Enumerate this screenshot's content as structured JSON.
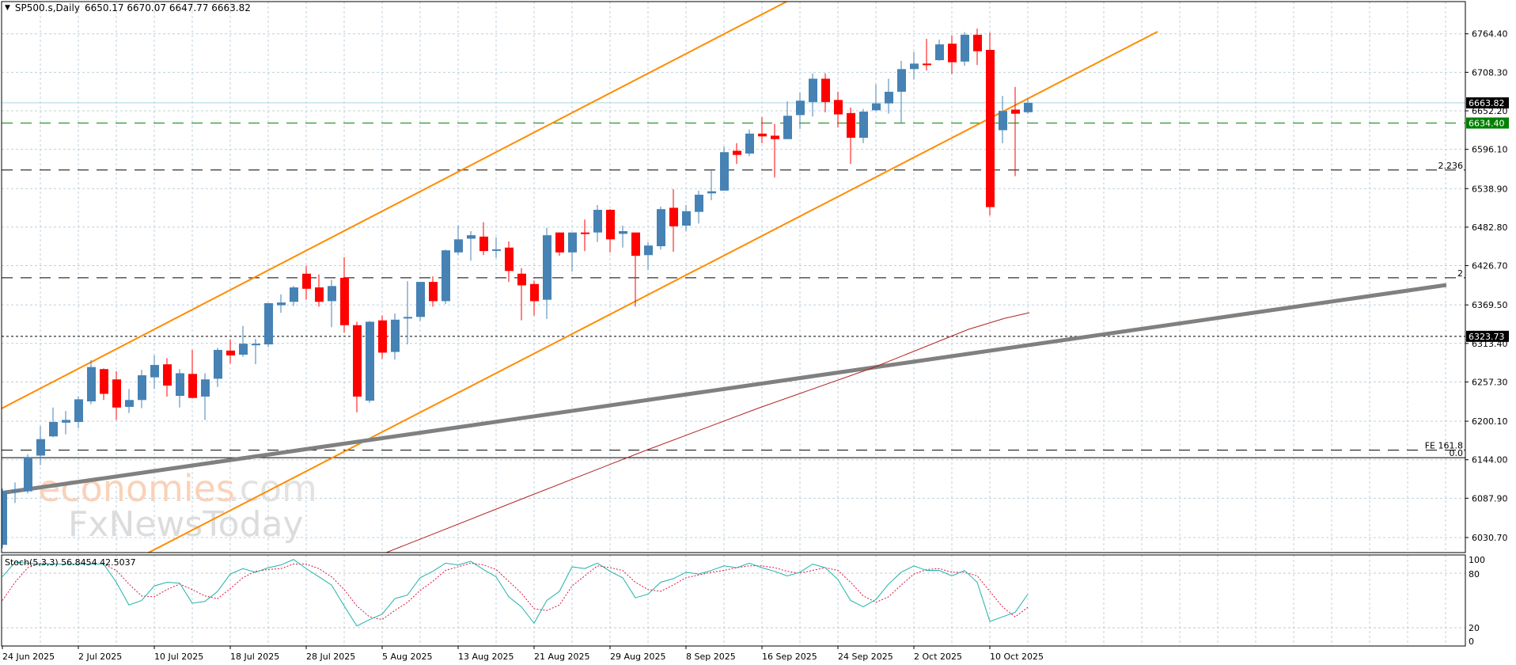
{
  "header": {
    "symbol": "SP500.s,Daily",
    "ohlc": "6650.17 6670.07 6647.77 6663.82"
  },
  "stoch_header": {
    "name": "Stoch(5,3,3)",
    "values": "56.8454 42.5037"
  },
  "watermark": {
    "line1a": "economies",
    "line1b": ".com",
    "line2": "FxNewsToday"
  },
  "colors": {
    "bull": "#4682B4",
    "bear": "#FF0000",
    "channel": "#FF8C00",
    "trend": "#808080",
    "ma": "#B22222",
    "stoch_k": "#20B2AA",
    "stoch_d": "#DC143C",
    "grid": "#BFD0DC",
    "bid_line": "#A8D8E0",
    "tag_green": "#008000",
    "tag_black": "#000000"
  },
  "chart_data": {
    "type": "candlestick",
    "title": "SP500.s,Daily",
    "ylim": [
      6000,
      6790
    ],
    "y_ticks": [
      "6764.40",
      "6708.30",
      "6652.20",
      "6596.10",
      "6538.90",
      "6482.80",
      "6426.70",
      "6369.50",
      "6313.40",
      "6257.30",
      "6200.10",
      "6144.00",
      "6087.90",
      "6030.70"
    ],
    "x_labels": [
      "24 Jun 2025",
      "2 Jul 2025",
      "10 Jul 2025",
      "18 Jul 2025",
      "28 Jul 2025",
      "5 Aug 2025",
      "13 Aug 2025",
      "21 Aug 2025",
      "29 Aug 2025",
      "8 Sep 2025",
      "16 Sep 2025",
      "24 Sep 2025",
      "2 Oct 2025",
      "10 Oct 2025"
    ],
    "x_label_every_bars": 6,
    "ohlc": [
      [
        6020,
        6102,
        6015,
        6098
      ],
      [
        6097,
        6111,
        6081,
        6100
      ],
      [
        6098,
        6152,
        6095,
        6148
      ],
      [
        6150,
        6193,
        6136,
        6174
      ],
      [
        6178,
        6220,
        6177,
        6199
      ],
      [
        6198,
        6215,
        6181,
        6202
      ],
      [
        6199,
        6236,
        6190,
        6232
      ],
      [
        6229,
        6289,
        6225,
        6279
      ],
      [
        6276,
        6277,
        6231,
        6240
      ],
      [
        6261,
        6273,
        6202,
        6220
      ],
      [
        6221,
        6247,
        6212,
        6231
      ],
      [
        6231,
        6275,
        6219,
        6267
      ],
      [
        6264,
        6296,
        6247,
        6282
      ],
      [
        6283,
        6292,
        6236,
        6252
      ],
      [
        6237,
        6276,
        6220,
        6270
      ],
      [
        6269,
        6304,
        6233,
        6234
      ],
      [
        6236,
        6270,
        6202,
        6261
      ],
      [
        6262,
        6307,
        6250,
        6304
      ],
      [
        6303,
        6319,
        6284,
        6296
      ],
      [
        6297,
        6339,
        6294,
        6313
      ],
      [
        6312,
        6320,
        6283,
        6313
      ],
      [
        6312,
        6372,
        6308,
        6372
      ],
      [
        6369,
        6385,
        6358,
        6373
      ],
      [
        6374,
        6397,
        6368,
        6395
      ],
      [
        6415,
        6426,
        6377,
        6393
      ],
      [
        6395,
        6414,
        6367,
        6374
      ],
      [
        6375,
        6406,
        6337,
        6397
      ],
      [
        6409,
        6439,
        6329,
        6340
      ],
      [
        6340,
        6345,
        6213,
        6236
      ],
      [
        6230,
        6346,
        6227,
        6345
      ],
      [
        6347,
        6354,
        6291,
        6300
      ],
      [
        6301,
        6357,
        6290,
        6348
      ],
      [
        6350,
        6404,
        6312,
        6352
      ],
      [
        6352,
        6403,
        6346,
        6403
      ],
      [
        6403,
        6411,
        6367,
        6375
      ],
      [
        6375,
        6450,
        6371,
        6449
      ],
      [
        6446,
        6485,
        6442,
        6465
      ],
      [
        6466,
        6477,
        6434,
        6471
      ],
      [
        6469,
        6490,
        6442,
        6448
      ],
      [
        6450,
        6468,
        6438,
        6450.5
      ],
      [
        6453,
        6462,
        6403,
        6419
      ],
      [
        6415,
        6423,
        6347,
        6398
      ],
      [
        6400,
        6405,
        6354,
        6375
      ],
      [
        6377,
        6482,
        6349,
        6471
      ],
      [
        6475,
        6475,
        6441,
        6446
      ],
      [
        6446,
        6475,
        6418,
        6475
      ],
      [
        6475,
        6494,
        6448,
        6474
      ],
      [
        6475,
        6515,
        6461,
        6508
      ],
      [
        6508,
        6509,
        6446,
        6465
      ],
      [
        6473,
        6485,
        6453,
        6477
      ],
      [
        6475,
        6475,
        6367,
        6441
      ],
      [
        6442,
        6461,
        6420,
        6456
      ],
      [
        6455,
        6513,
        6450,
        6509
      ],
      [
        6511,
        6538,
        6447,
        6484
      ],
      [
        6485,
        6515,
        6477,
        6506
      ],
      [
        6505,
        6536,
        6488,
        6530
      ],
      [
        6532,
        6565,
        6522,
        6535
      ],
      [
        6536,
        6600,
        6536,
        6592
      ],
      [
        6594,
        6605,
        6575,
        6588
      ],
      [
        6590,
        6625,
        6586,
        6619
      ],
      [
        6619,
        6643,
        6605,
        6615
      ],
      [
        6616,
        6633,
        6555,
        6611
      ],
      [
        6611,
        6666,
        6611,
        6645
      ],
      [
        6646,
        6679,
        6626,
        6667
      ],
      [
        6665,
        6707,
        6644,
        6699
      ],
      [
        6699,
        6707,
        6650,
        6665
      ],
      [
        6668,
        6680,
        6628,
        6647
      ],
      [
        6649,
        6657,
        6575,
        6613
      ],
      [
        6613,
        6655,
        6605,
        6651
      ],
      [
        6653,
        6691,
        6652,
        6663
      ],
      [
        6663,
        6699,
        6648,
        6680
      ],
      [
        6680,
        6725,
        6634,
        6713
      ],
      [
        6713,
        6738,
        6698,
        6721
      ],
      [
        6721,
        6757,
        6711,
        6719
      ],
      [
        6726,
        6756,
        6725,
        6749
      ],
      [
        6750,
        6762,
        6706,
        6723
      ],
      [
        6724,
        6767,
        6718,
        6763
      ],
      [
        6763,
        6772,
        6719,
        6739
      ],
      [
        6741,
        6766,
        6500,
        6512
      ],
      [
        6624,
        6674,
        6605,
        6652
      ],
      [
        6654,
        6687,
        6557,
        6648
      ],
      [
        6650.17,
        6670.07,
        6647.77,
        6663.82
      ]
    ],
    "levels": [
      {
        "price": 6663.82,
        "tag": "6663.82",
        "kind": "bid"
      },
      {
        "price": 6634.4,
        "tag": "6634.40",
        "kind": "green-dash"
      },
      {
        "price": 6566,
        "label": "2.236",
        "kind": "black-dash"
      },
      {
        "price": 6409,
        "label": "2",
        "kind": "black-dash"
      },
      {
        "price": 6323.73,
        "tag": "6323.73",
        "kind": "black-dot"
      },
      {
        "price": 6158,
        "label": "FE 161.8",
        "kind": "black-dash"
      },
      {
        "price": 6147,
        "label": "0.0",
        "kind": "black-solid"
      }
    ],
    "stochastic": {
      "params": "5,3,3",
      "ylim": [
        0,
        100
      ],
      "y_ticks": [
        "100",
        "80",
        "20",
        "0"
      ],
      "k": [
        76,
        92,
        91,
        90,
        90,
        90,
        90,
        90,
        90,
        70,
        45,
        50,
        66,
        70,
        69,
        47,
        49,
        60,
        79,
        85,
        81,
        86,
        89,
        95,
        85,
        76,
        67,
        44,
        22,
        29,
        35,
        52,
        56,
        75,
        82,
        91,
        89,
        93,
        84,
        76,
        54,
        43,
        25,
        50,
        60,
        87,
        85,
        91,
        82,
        75,
        53,
        57,
        70,
        74,
        81,
        79,
        83,
        88,
        86,
        91,
        86,
        82,
        77,
        81,
        90,
        86,
        73,
        50,
        43,
        51,
        68,
        81,
        88,
        83,
        83,
        77,
        83,
        70,
        27,
        32,
        37,
        56.8454
      ],
      "d": [
        50,
        70,
        86,
        91,
        90,
        90,
        90,
        90,
        90,
        83,
        68,
        55,
        54,
        62,
        68,
        62,
        55,
        52,
        63,
        75,
        82,
        84,
        85,
        90,
        90,
        85,
        76,
        62,
        44,
        32,
        29,
        39,
        48,
        61,
        71,
        83,
        87,
        91,
        89,
        84,
        71,
        58,
        41,
        39,
        45,
        66,
        77,
        88,
        86,
        83,
        70,
        62,
        60,
        67,
        75,
        78,
        81,
        83,
        86,
        88,
        88,
        86,
        82,
        80,
        83,
        86,
        83,
        70,
        55,
        48,
        54,
        67,
        79,
        84,
        85,
        81,
        81,
        77,
        60,
        43,
        32,
        42.5037
      ]
    }
  }
}
